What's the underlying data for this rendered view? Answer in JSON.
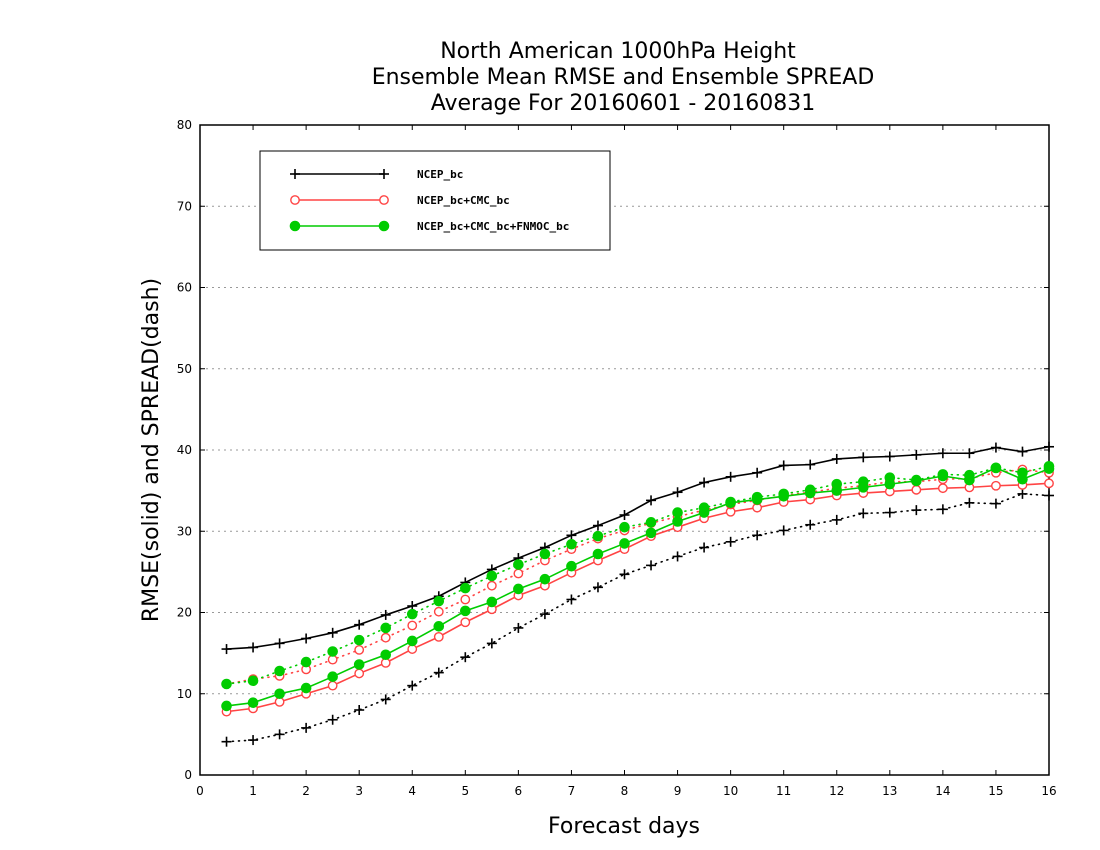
{
  "chart_data": {
    "type": "line",
    "title": [
      "North American 1000hPa Height",
      "Ensemble Mean RMSE and Ensemble SPREAD",
      "Average For 20160601 - 20160831"
    ],
    "xlabel": "Forecast days",
    "ylabel": "RMSE(solid) and SPREAD(dash)",
    "xlim": [
      0,
      16
    ],
    "ylim": [
      0,
      80
    ],
    "xticks": [
      "0",
      "1",
      "2",
      "3",
      "4",
      "5",
      "6",
      "7",
      "8",
      "9",
      "10",
      "11",
      "12",
      "13",
      "14",
      "15",
      "16"
    ],
    "yticks": [
      "0",
      "10",
      "20",
      "30",
      "40",
      "50",
      "60",
      "70",
      "80"
    ],
    "grid": "horizontal dotted",
    "legend_position": "top-left",
    "x": [
      0.5,
      1,
      1.5,
      2,
      2.5,
      3,
      3.5,
      4,
      4.5,
      5,
      5.5,
      6,
      6.5,
      7,
      7.5,
      8,
      8.5,
      9,
      9.5,
      10,
      10.5,
      11,
      11.5,
      12,
      12.5,
      13,
      13.5,
      14,
      14.5,
      15,
      15.5,
      16
    ],
    "series": [
      {
        "name": "NCEP_bc",
        "color": "#000000",
        "marker": "plus",
        "rmse": [
          15.5,
          15.7,
          16.2,
          16.8,
          17.5,
          18.5,
          19.7,
          20.8,
          22.0,
          23.7,
          25.3,
          26.7,
          28.0,
          29.5,
          30.7,
          32.0,
          33.8,
          34.8,
          36.0,
          36.7,
          37.2,
          38.1,
          38.2,
          38.9,
          39.1,
          39.2,
          39.4,
          39.6,
          39.6,
          40.3,
          39.8,
          40.4
        ],
        "spread": [
          4.1,
          4.3,
          5.0,
          5.8,
          6.8,
          8.0,
          9.3,
          11.0,
          12.6,
          14.5,
          16.2,
          18.1,
          19.8,
          21.6,
          23.1,
          24.7,
          25.8,
          26.9,
          28.0,
          28.7,
          29.5,
          30.1,
          30.8,
          31.4,
          32.2,
          32.3,
          32.6,
          32.7,
          33.5,
          33.4,
          34.6,
          34.4
        ]
      },
      {
        "name": "NCEP_bc+CMC_bc",
        "color": "#ff4444",
        "marker": "open-circle",
        "rmse": [
          7.8,
          8.2,
          9.0,
          10.0,
          11.0,
          12.5,
          13.8,
          15.5,
          17.0,
          18.8,
          20.4,
          22.1,
          23.3,
          24.9,
          26.4,
          27.8,
          29.4,
          30.5,
          31.6,
          32.4,
          32.9,
          33.6,
          33.9,
          34.4,
          34.7,
          34.9,
          35.1,
          35.3,
          35.4,
          35.6,
          35.7,
          35.9
        ],
        "spread": [
          11.2,
          11.8,
          12.2,
          13.0,
          14.2,
          15.4,
          16.9,
          18.4,
          20.1,
          21.6,
          23.3,
          24.8,
          26.4,
          27.8,
          29.1,
          30.1,
          31.0,
          31.8,
          32.6,
          33.3,
          33.8,
          34.4,
          34.8,
          35.3,
          35.6,
          36.1,
          36.1,
          36.4,
          36.5,
          37.2,
          37.6,
          37.2
        ]
      },
      {
        "name": "NCEP_bc+CMC_bc+FNMOC_bc",
        "color": "#00cc00",
        "marker": "filled-circle",
        "rmse": [
          8.5,
          8.9,
          10.0,
          10.7,
          12.1,
          13.6,
          14.8,
          16.5,
          18.3,
          20.2,
          21.3,
          22.9,
          24.1,
          25.7,
          27.2,
          28.5,
          29.8,
          31.2,
          32.3,
          33.5,
          33.9,
          34.3,
          34.7,
          35.0,
          35.4,
          35.8,
          36.2,
          36.8,
          36.3,
          37.8,
          36.4,
          37.7
        ],
        "spread": [
          11.2,
          11.6,
          12.8,
          13.9,
          15.2,
          16.6,
          18.1,
          19.8,
          21.4,
          23.0,
          24.5,
          25.9,
          27.2,
          28.4,
          29.4,
          30.5,
          31.1,
          32.3,
          32.9,
          33.6,
          34.2,
          34.6,
          35.1,
          35.8,
          36.1,
          36.6,
          36.3,
          37.0,
          36.9,
          37.8,
          37.2,
          38.0
        ]
      }
    ]
  }
}
